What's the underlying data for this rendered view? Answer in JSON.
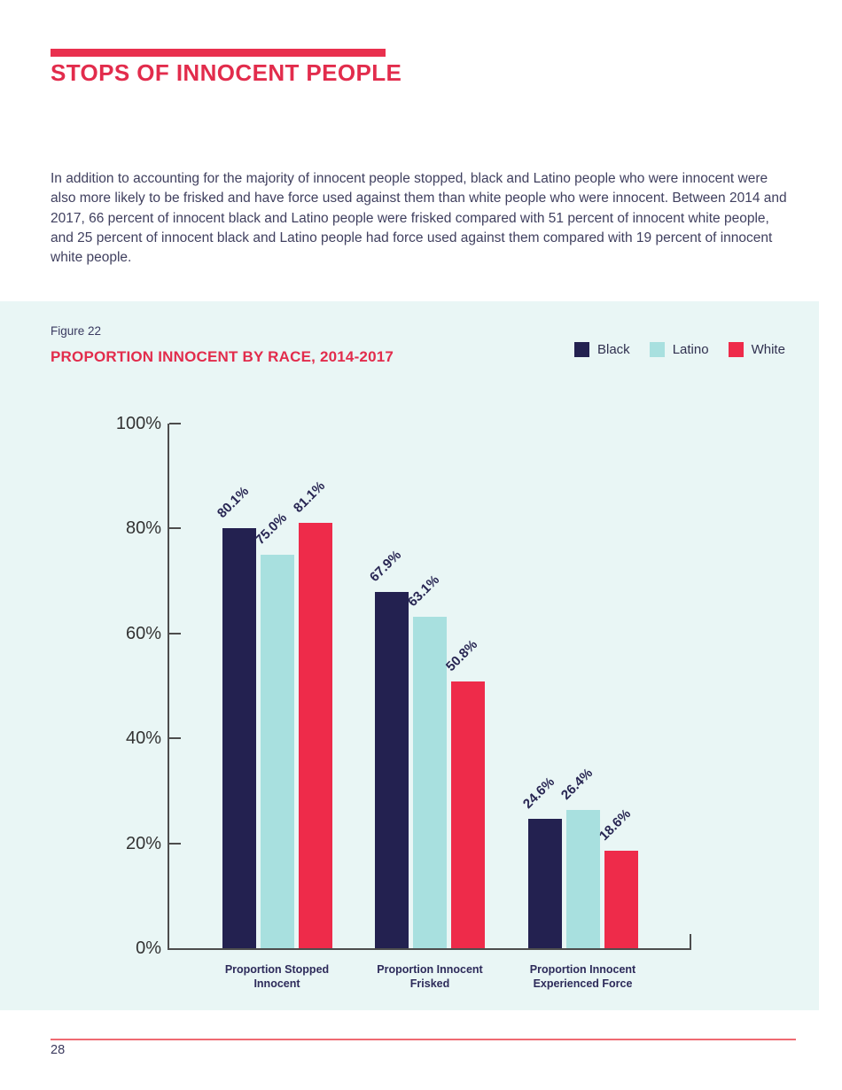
{
  "page": {
    "title": "STOPS OF INNOCENT PEOPLE",
    "paragraph": "In addition to accounting for the majority of innocent people stopped, black and Latino people who were innocent were also more likely to be frisked and have force used against them than white people who were innocent. Between 2014 and 2017, 66 percent of innocent black and Latino people were frisked compared with 51 percent of innocent white people, and 25 percent of innocent black and Latino people had force used against them compared with 19 percent of innocent white people.",
    "page_number": "28"
  },
  "figure": {
    "label": "Figure 22",
    "title": "PROPORTION INNOCENT BY RACE, 2014-2017"
  },
  "colors": {
    "accent_red": "#e22c4c",
    "bar_black": "#232150",
    "bar_latino": "#a8e0df",
    "bar_white": "#ee2b4a",
    "section_background": "#e9f6f5",
    "footer_rule": "#ef6a72"
  },
  "chart_data": {
    "type": "bar",
    "title": "PROPORTION INNOCENT BY RACE, 2014-2017",
    "figure_label": "Figure 22",
    "categories": [
      {
        "line1": "Proportion Stopped",
        "line2": "Innocent"
      },
      {
        "line1": "Proportion Innocent",
        "line2": "Frisked"
      },
      {
        "line1": "Proportion Innocent",
        "line2": "Experienced Force"
      }
    ],
    "series": [
      {
        "name": "Black",
        "color": "#232150",
        "values": [
          80.1,
          67.9,
          24.6
        ],
        "labels": [
          "80.1%",
          "67.9%",
          "24.6%"
        ]
      },
      {
        "name": "Latino",
        "color": "#a8e0df",
        "values": [
          75.0,
          63.1,
          26.4
        ],
        "labels": [
          "75.0%",
          "63.1%",
          "26.4%"
        ]
      },
      {
        "name": "White",
        "color": "#ee2b4a",
        "values": [
          81.1,
          50.8,
          18.6
        ],
        "labels": [
          "81.1%",
          "50.8%",
          "18.6%"
        ]
      }
    ],
    "y_ticks": [
      "0%",
      "20%",
      "40%",
      "60%",
      "80%",
      "100%"
    ],
    "ylim": [
      0,
      100
    ],
    "grid": false,
    "legend_position": "top-right",
    "xlabel": "",
    "ylabel": ""
  }
}
